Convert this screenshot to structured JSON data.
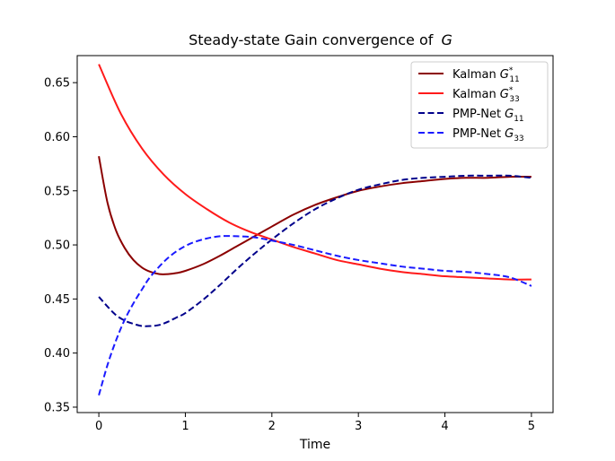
{
  "chart_data": {
    "type": "line",
    "title": "Steady-state Gain convergence of",
    "title_symbol": "G",
    "xlabel": "Time",
    "ylabel": "",
    "xlim": [
      -0.25,
      5.25
    ],
    "ylim": [
      0.345,
      0.675
    ],
    "xticks": [
      0,
      1,
      2,
      3,
      4,
      5
    ],
    "xtick_labels": [
      "0",
      "1",
      "2",
      "3",
      "4",
      "5"
    ],
    "yticks": [
      0.35,
      0.4,
      0.45,
      0.5,
      0.55,
      0.6,
      0.65
    ],
    "ytick_labels": [
      "0.35",
      "0.40",
      "0.45",
      "0.50",
      "0.55",
      "0.60",
      "0.65"
    ],
    "legend_position": "top-right",
    "series": [
      {
        "name": "Kalman G11*",
        "legend_prefix": "Kalman",
        "legend_symbol": "G",
        "legend_subscript": "11",
        "legend_superscript": "*",
        "color": "#8b0000",
        "style": "solid",
        "x": [
          0,
          0.1,
          0.2,
          0.3,
          0.4,
          0.5,
          0.6,
          0.7,
          0.8,
          0.9,
          1.0,
          1.2,
          1.4,
          1.6,
          1.8,
          2.0,
          2.25,
          2.5,
          2.75,
          3.0,
          3.25,
          3.5,
          3.75,
          4.0,
          4.25,
          4.5,
          4.75,
          5.0
        ],
        "y": [
          0.582,
          0.539,
          0.513,
          0.497,
          0.486,
          0.479,
          0.475,
          0.473,
          0.473,
          0.474,
          0.476,
          0.482,
          0.49,
          0.499,
          0.508,
          0.517,
          0.528,
          0.537,
          0.544,
          0.55,
          0.554,
          0.557,
          0.559,
          0.561,
          0.562,
          0.562,
          0.563,
          0.563
        ]
      },
      {
        "name": "Kalman G33*",
        "legend_prefix": "Kalman",
        "legend_symbol": "G",
        "legend_subscript": "33",
        "legend_superscript": "*",
        "color": "#ff1a1a",
        "style": "solid",
        "x": [
          0,
          0.25,
          0.5,
          0.75,
          1.0,
          1.25,
          1.5,
          1.75,
          2.0,
          2.25,
          2.5,
          2.75,
          3.0,
          3.25,
          3.5,
          3.75,
          4.0,
          4.25,
          4.5,
          4.75,
          5.0
        ],
        "y": [
          0.667,
          0.622,
          0.589,
          0.565,
          0.547,
          0.533,
          0.521,
          0.512,
          0.505,
          0.498,
          0.492,
          0.486,
          0.482,
          0.478,
          0.475,
          0.473,
          0.471,
          0.47,
          0.469,
          0.468,
          0.468
        ]
      },
      {
        "name": "PMP-Net G11",
        "legend_prefix": "PMP-Net",
        "legend_symbol": "G",
        "legend_subscript": "11",
        "legend_superscript": "",
        "color": "#00008b",
        "style": "dashed",
        "x": [
          0,
          0.1,
          0.2,
          0.3,
          0.4,
          0.5,
          0.6,
          0.7,
          0.8,
          0.9,
          1.0,
          1.2,
          1.4,
          1.6,
          1.8,
          2.0,
          2.25,
          2.5,
          2.75,
          3.0,
          3.25,
          3.5,
          3.75,
          4.0,
          4.25,
          4.5,
          4.75,
          5.0
        ],
        "y": [
          0.452,
          0.443,
          0.435,
          0.43,
          0.427,
          0.425,
          0.425,
          0.426,
          0.429,
          0.433,
          0.437,
          0.449,
          0.463,
          0.478,
          0.492,
          0.505,
          0.52,
          0.533,
          0.543,
          0.551,
          0.556,
          0.56,
          0.562,
          0.563,
          0.564,
          0.564,
          0.564,
          0.562
        ]
      },
      {
        "name": "PMP-Net G33",
        "legend_prefix": "PMP-Net",
        "legend_symbol": "G",
        "legend_subscript": "33",
        "legend_superscript": "",
        "color": "#1a1aff",
        "style": "dashed",
        "x": [
          0,
          0.1,
          0.2,
          0.3,
          0.4,
          0.5,
          0.6,
          0.8,
          1.0,
          1.2,
          1.4,
          1.6,
          1.8,
          2.0,
          2.25,
          2.5,
          2.75,
          3.0,
          3.25,
          3.5,
          3.75,
          4.0,
          4.25,
          4.5,
          4.75,
          5.0
        ],
        "y": [
          0.361,
          0.389,
          0.412,
          0.431,
          0.446,
          0.459,
          0.471,
          0.488,
          0.499,
          0.505,
          0.508,
          0.508,
          0.507,
          0.504,
          0.5,
          0.495,
          0.49,
          0.486,
          0.483,
          0.48,
          0.478,
          0.476,
          0.475,
          0.473,
          0.47,
          0.462
        ]
      }
    ]
  }
}
